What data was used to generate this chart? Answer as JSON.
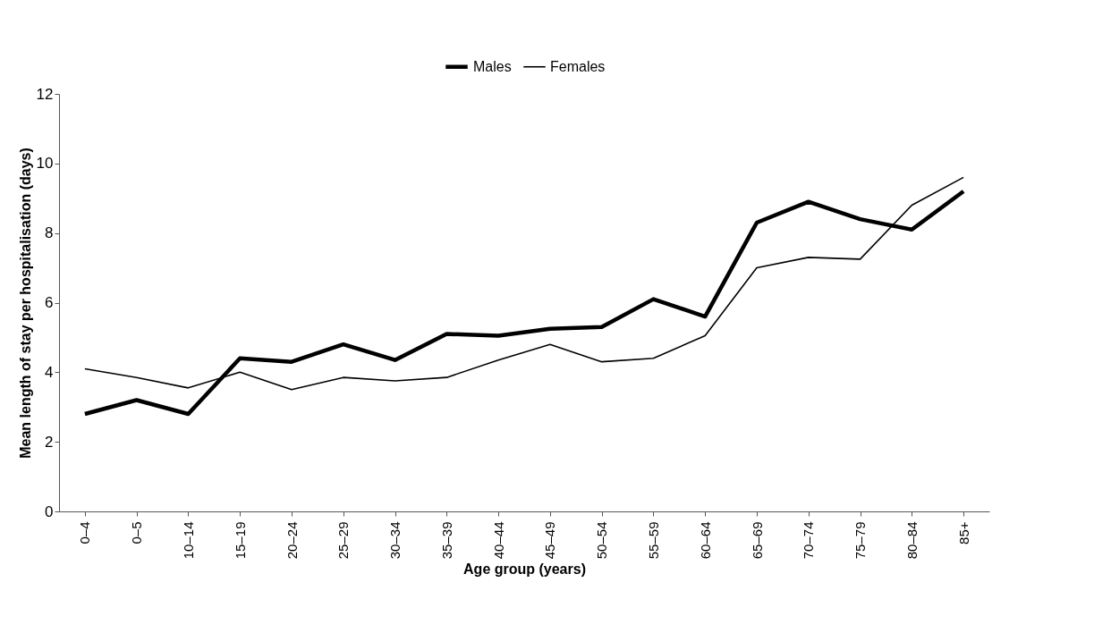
{
  "chart_data": {
    "type": "line",
    "xlabel": "Age group (years)",
    "ylabel": "Mean length of stay per hospitalisation (days)",
    "categories": [
      "0–4",
      "0–5",
      "10–14",
      "15–19",
      "20–24",
      "25–29",
      "30–34",
      "35–39",
      "40–44",
      "45–49",
      "50–54",
      "55–59",
      "60–64",
      "65–69",
      "70–74",
      "75–79",
      "80–84",
      "85+"
    ],
    "series": [
      {
        "name": "Males",
        "color": "#000000",
        "values": [
          2.8,
          3.2,
          2.8,
          4.4,
          4.3,
          4.8,
          4.35,
          5.1,
          5.05,
          5.25,
          5.3,
          6.1,
          5.6,
          8.3,
          8.9,
          8.4,
          8.1,
          9.2
        ]
      },
      {
        "name": "Females",
        "color": "#000000",
        "values": [
          4.1,
          3.85,
          3.55,
          4.0,
          3.5,
          3.85,
          3.75,
          3.85,
          4.35,
          4.8,
          4.3,
          4.4,
          5.05,
          7.0,
          7.3,
          7.25,
          8.8,
          9.6
        ]
      }
    ],
    "ylim": [
      0,
      12
    ],
    "yticks": [
      0,
      2,
      4,
      6,
      8,
      10,
      12
    ],
    "grid": false,
    "legend": "top",
    "marker": "none",
    "line_style": "solid"
  }
}
